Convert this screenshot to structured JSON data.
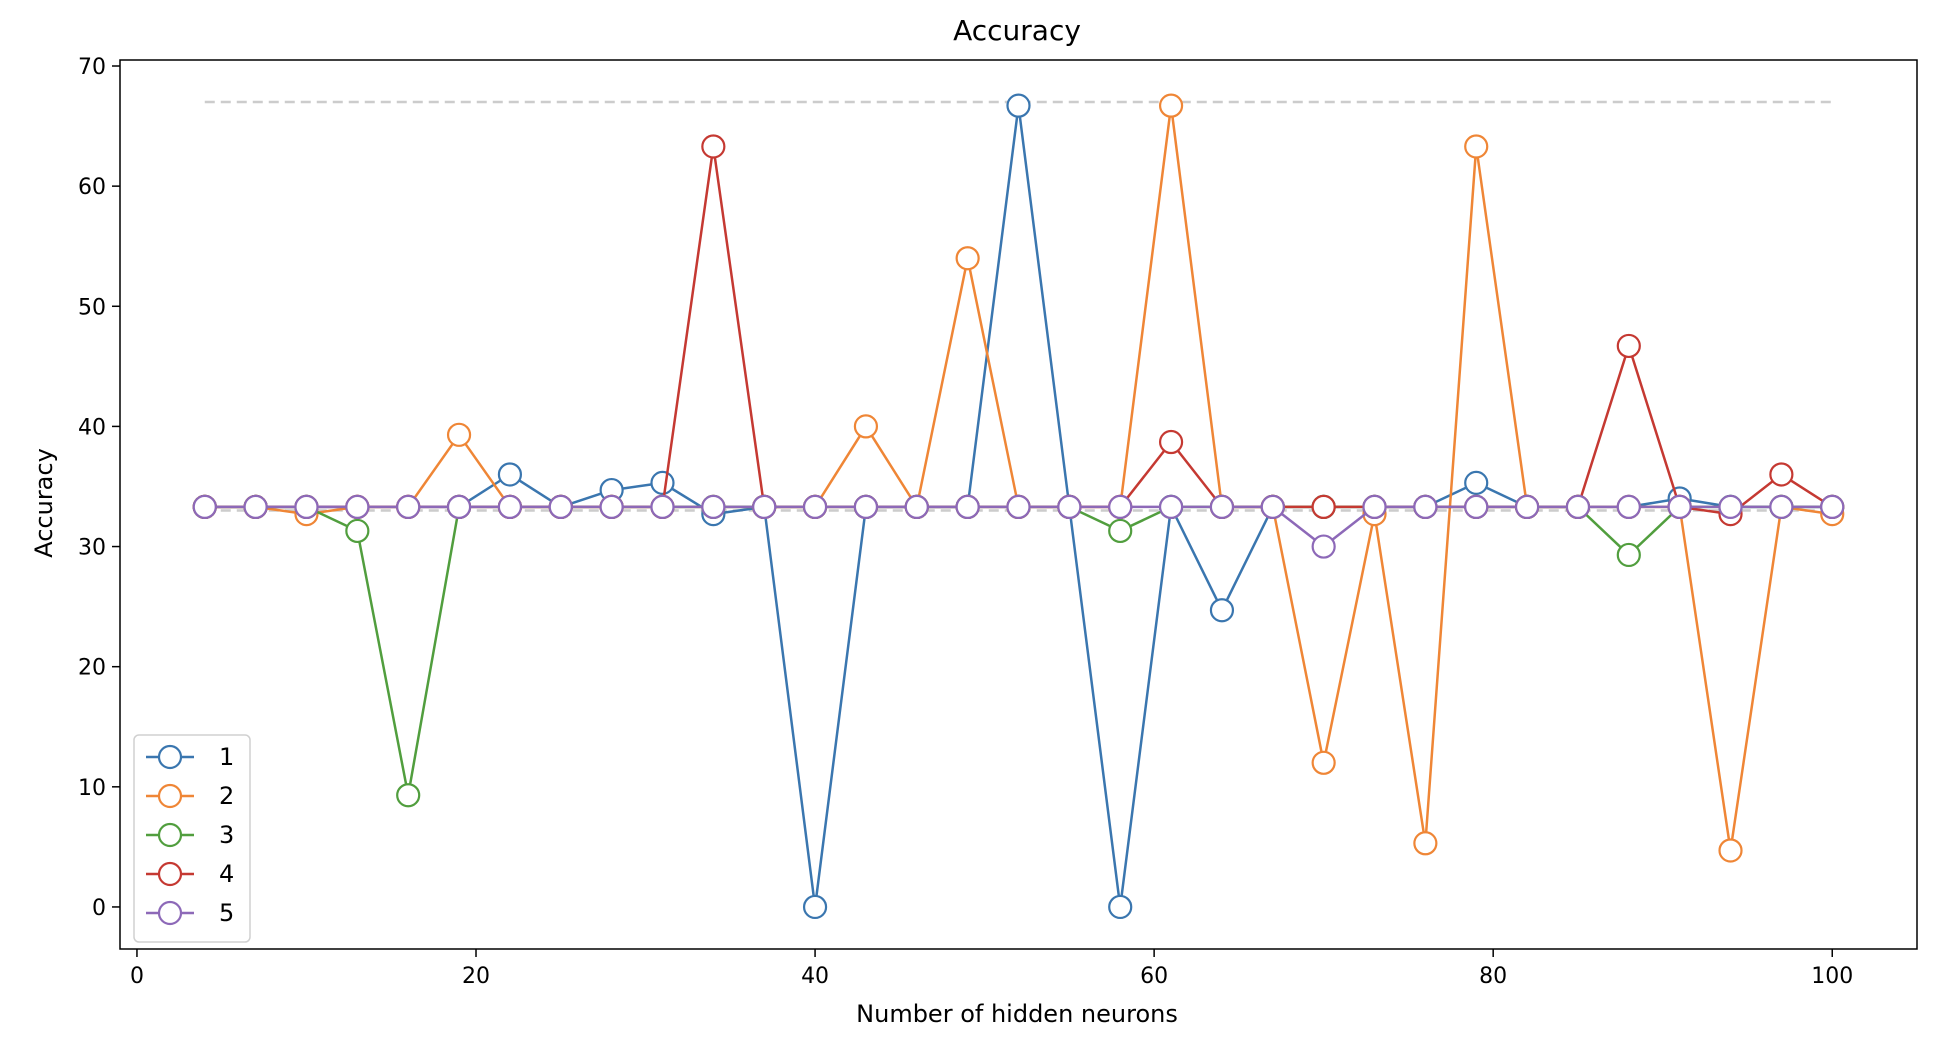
{
  "chart_data": {
    "type": "line",
    "title": "Accuracy",
    "xlabel": "Number of hidden neurons",
    "ylabel": "Accuracy",
    "xlim": [
      -1,
      105
    ],
    "ylim": [
      -3.5,
      70.5
    ],
    "xticks": [
      0,
      20,
      40,
      60,
      80,
      100
    ],
    "yticks": [
      0,
      10,
      20,
      30,
      40,
      50,
      60,
      70
    ],
    "grid": false,
    "legend_position": "lower-left",
    "x": [
      4,
      7,
      10,
      13,
      16,
      19,
      22,
      25,
      28,
      31,
      34,
      37,
      40,
      43,
      46,
      49,
      52,
      55,
      58,
      61,
      64,
      67,
      70,
      73,
      76,
      79,
      82,
      85,
      88,
      91,
      94,
      97,
      100
    ],
    "reference_lines": [
      {
        "y": 67,
        "x": [
          4,
          100
        ],
        "color": "#cccccc",
        "style": "dashed"
      },
      {
        "y": 33,
        "x": [
          4,
          100
        ],
        "color": "#cccccc",
        "style": "dashed"
      }
    ],
    "series": [
      {
        "name": "1",
        "color": "#3a76af",
        "values": [
          33.3,
          33.3,
          33.3,
          33.3,
          33.3,
          33.3,
          36.0,
          33.3,
          34.7,
          35.3,
          32.7,
          33.3,
          0,
          33.3,
          33.3,
          33.3,
          66.7,
          33.3,
          0,
          33.3,
          24.7,
          33.3,
          33.3,
          33.3,
          33.3,
          35.3,
          33.3,
          33.3,
          33.3,
          34.0,
          33.3,
          33.3,
          33.3
        ]
      },
      {
        "name": "2",
        "color": "#ef8636",
        "values": [
          33.3,
          33.3,
          32.7,
          33.3,
          33.3,
          39.3,
          33.3,
          33.3,
          33.3,
          33.3,
          33.3,
          33.3,
          33.3,
          40.0,
          33.3,
          54.0,
          33.3,
          33.3,
          33.3,
          66.7,
          33.3,
          33.3,
          12.0,
          32.7,
          5.3,
          63.3,
          33.3,
          33.3,
          33.3,
          33.3,
          4.7,
          33.3,
          32.7
        ]
      },
      {
        "name": "3",
        "color": "#519e3e",
        "values": [
          33.3,
          33.3,
          33.3,
          31.3,
          9.3,
          33.3,
          33.3,
          33.3,
          33.3,
          33.3,
          33.3,
          33.3,
          33.3,
          33.3,
          33.3,
          33.3,
          33.3,
          33.3,
          31.3,
          33.3,
          33.3,
          33.3,
          33.3,
          33.3,
          33.3,
          33.3,
          33.3,
          33.3,
          29.3,
          33.3,
          33.3,
          33.3,
          33.3
        ]
      },
      {
        "name": "4",
        "color": "#c53932",
        "values": [
          33.3,
          33.3,
          33.3,
          33.3,
          33.3,
          33.3,
          33.3,
          33.3,
          33.3,
          33.3,
          63.3,
          33.3,
          33.3,
          33.3,
          33.3,
          33.3,
          33.3,
          33.3,
          33.3,
          38.7,
          33.3,
          33.3,
          33.3,
          33.3,
          33.3,
          33.3,
          33.3,
          33.3,
          46.7,
          33.3,
          32.7,
          36.0,
          33.3
        ]
      },
      {
        "name": "5",
        "color": "#8d69b8",
        "values": [
          33.3,
          33.3,
          33.3,
          33.3,
          33.3,
          33.3,
          33.3,
          33.3,
          33.3,
          33.3,
          33.3,
          33.3,
          33.3,
          33.3,
          33.3,
          33.3,
          33.3,
          33.3,
          33.3,
          33.3,
          33.3,
          33.3,
          30.0,
          33.3,
          33.3,
          33.3,
          33.3,
          33.3,
          33.3,
          33.3,
          33.3,
          33.3,
          33.3
        ]
      }
    ]
  }
}
